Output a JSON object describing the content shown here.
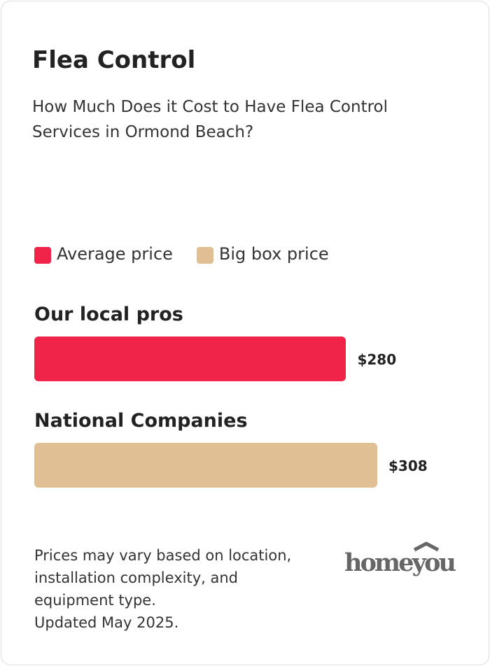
{
  "chart_data": {
    "type": "bar",
    "title": "Flea Control",
    "subtitle": "How Much Does it Cost to Have Flea Control Services in Ormond Beach?",
    "categories": [
      "Our local pros",
      "National Companies"
    ],
    "series": [
      {
        "name": "Average price",
        "color": "#f02349",
        "values": [
          280,
          null
        ],
        "value_labels": [
          "$280",
          null
        ]
      },
      {
        "name": "Big box price",
        "color": "#dfbf93",
        "values": [
          null,
          308
        ],
        "value_labels": [
          null,
          "$308"
        ]
      }
    ],
    "footnote": "Prices may vary based on location, installation complexity, and equipment type.",
    "updated": "Updated May 2025.",
    "logo": "homeyou"
  }
}
